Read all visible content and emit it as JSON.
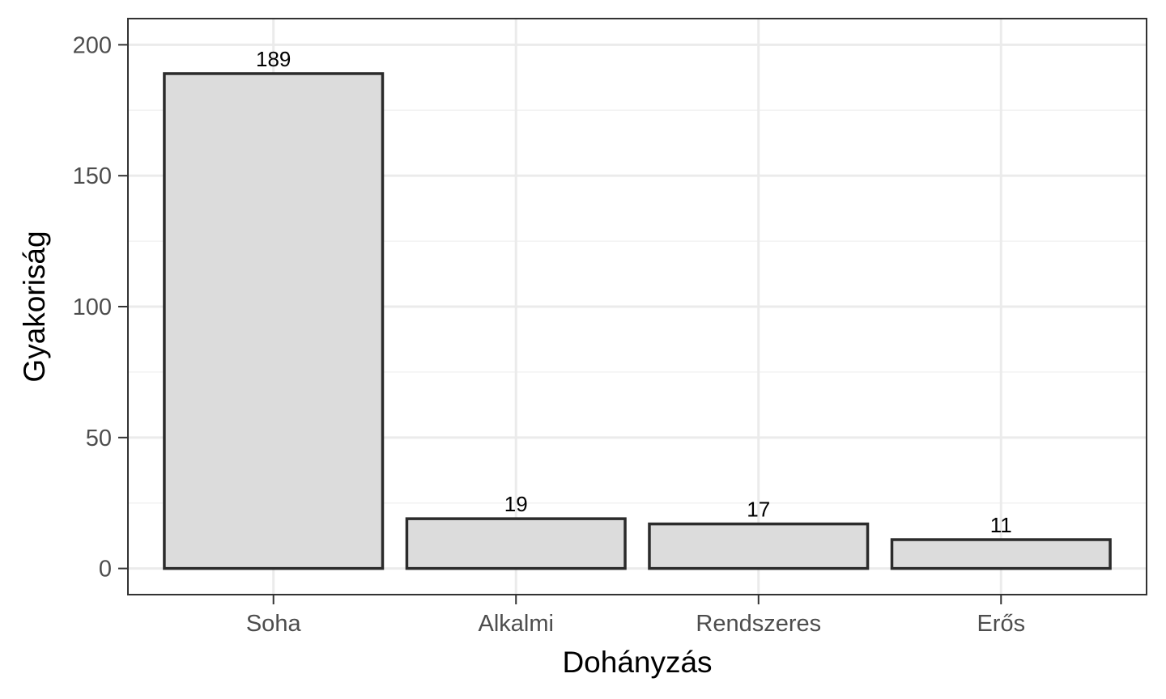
{
  "chart_data": {
    "type": "bar",
    "title": "",
    "xlabel": "Dohányzás",
    "ylabel": "Gyakoriság",
    "categories": [
      "Soha",
      "Alkalmi",
      "Rendszeres",
      "Erős"
    ],
    "values": [
      189,
      19,
      17,
      11
    ],
    "data_labels": [
      "189",
      "19",
      "17",
      "11"
    ],
    "ylim": [
      -10,
      210
    ],
    "y_ticks": [
      0,
      50,
      100,
      150,
      200
    ],
    "y_tick_labels": [
      "0",
      "50",
      "100",
      "150",
      "200"
    ],
    "grid": true,
    "legend": "none",
    "colors": {
      "bar_fill": "#dcdcdc",
      "bar_stroke": "#2b2b2b",
      "grid_major": "#ebebeb",
      "grid_minor": "#f2f2f2",
      "panel_border": "#333333",
      "tick_text": "#4d4d4d"
    }
  }
}
